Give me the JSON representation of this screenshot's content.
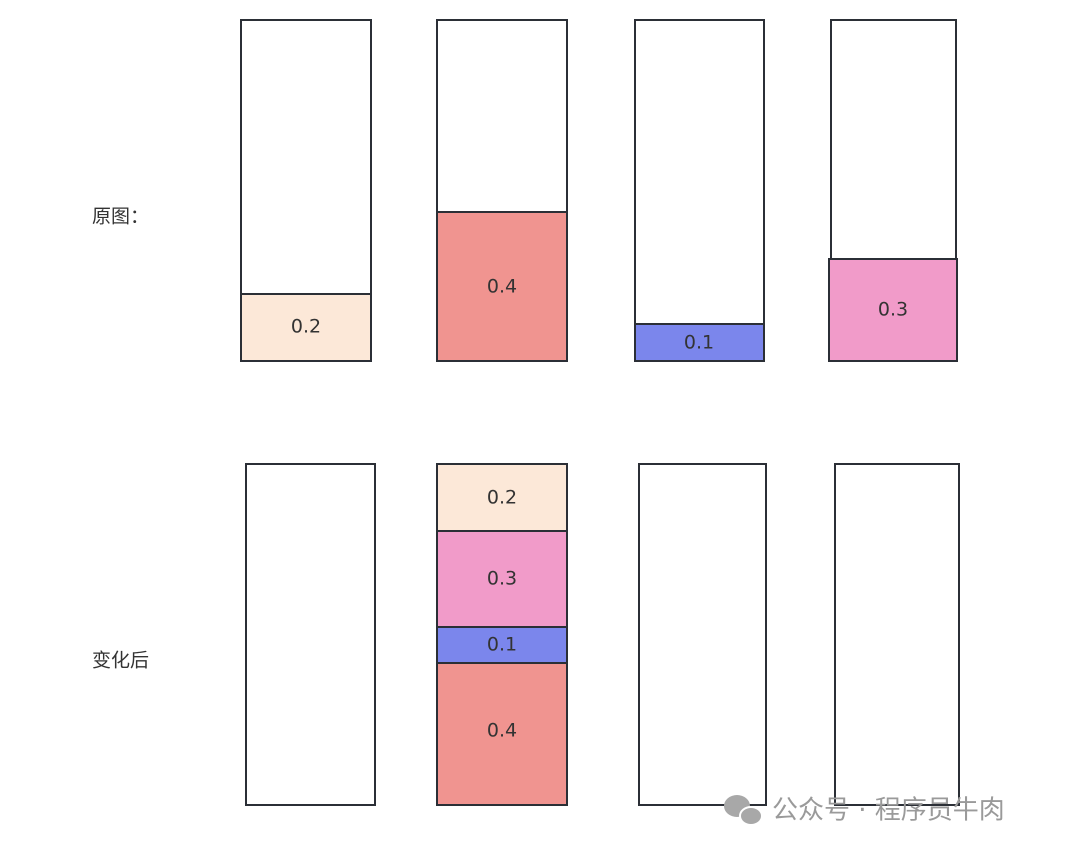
{
  "rows": [
    {
      "label": "原图：",
      "columns": [
        [
          "0.2"
        ],
        [
          "0.4"
        ],
        [
          "0.1"
        ],
        [
          "0.3"
        ]
      ]
    },
    {
      "label": "变化后",
      "columns": [
        [],
        [
          "0.2",
          "0.3",
          "0.1",
          "0.4"
        ],
        [],
        []
      ]
    }
  ],
  "watermark": "公众号 · 程序员牛肉"
}
